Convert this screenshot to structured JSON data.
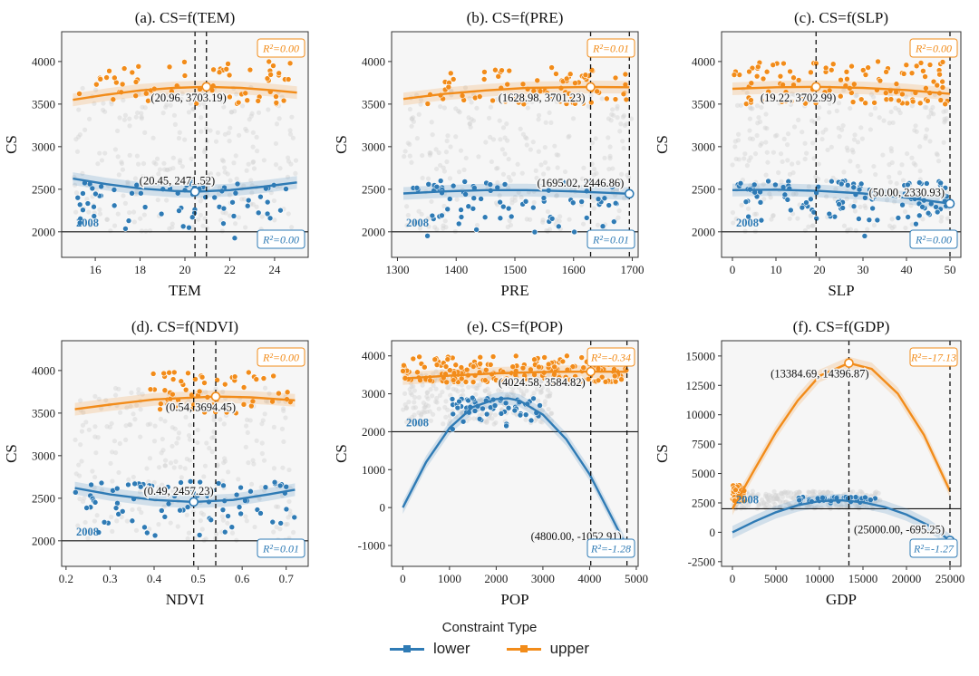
{
  "colors": {
    "lower": "#2f7bb5",
    "upper": "#f28c1a",
    "scatter": "#d3d3d3",
    "panel_bg": "#f6f6f6"
  },
  "legend": {
    "title": "Constraint Type",
    "items": [
      {
        "key": "lower",
        "label": "lower"
      },
      {
        "key": "upper",
        "label": "upper"
      }
    ]
  },
  "chart_data": [
    {
      "type": "scatter",
      "title": "(a). CS=f(TEM)",
      "xlabel": "TEM",
      "ylabel": "CS",
      "xlim": [
        14.5,
        25.5
      ],
      "ylim": [
        1700,
        4350
      ],
      "xticks": [
        16,
        18,
        20,
        22,
        24
      ],
      "yticks": [
        2000,
        2500,
        3000,
        3500,
        4000
      ],
      "year_label": "2008",
      "baseline": 2000,
      "vlines": [
        20.45,
        20.96
      ],
      "upper": {
        "r2": "R²=0.00",
        "curve_x": [
          15,
          16.5,
          18,
          19.5,
          20.96,
          22.5,
          24,
          25
        ],
        "curve_y": [
          3550,
          3610,
          3660,
          3690,
          3703,
          3690,
          3660,
          3635
        ],
        "optimum": [
          20.96,
          3703.19
        ],
        "opt_label": "(20.96, 3703.19)"
      },
      "lower": {
        "r2": "R²=0.00",
        "curve_x": [
          15,
          16.5,
          18,
          19.5,
          20.45,
          22,
          23.5,
          25
        ],
        "curve_y": [
          2625,
          2560,
          2510,
          2480,
          2472,
          2490,
          2530,
          2580
        ],
        "optimum": [
          20.45,
          2471.52
        ],
        "opt_label": "(20.45, 2471.52)"
      },
      "upper_points": {
        "x_range": [
          15.2,
          24.8
        ],
        "y_range": [
          3500,
          4000
        ],
        "count": 70
      },
      "lower_points": {
        "x_range": [
          15.2,
          24.8
        ],
        "y_range": [
          1900,
          2600
        ],
        "count": 70
      },
      "bg_points": {
        "x_range": [
          15,
          25
        ],
        "y_range": [
          2000,
          3700
        ],
        "count": 260
      }
    },
    {
      "type": "scatter",
      "title": "(b). CS=f(PRE)",
      "xlabel": "PRE",
      "ylabel": "CS",
      "xlim": [
        1290,
        1710
      ],
      "ylim": [
        1700,
        4350
      ],
      "xticks": [
        1300,
        1400,
        1500,
        1600,
        1700
      ],
      "yticks": [
        2000,
        2500,
        3000,
        3500,
        4000
      ],
      "year_label": "2008",
      "baseline": 2000,
      "vlines": [
        1628.98,
        1695.02
      ],
      "upper": {
        "r2": "R²=0.01",
        "curve_x": [
          1310,
          1380,
          1450,
          1520,
          1628.98,
          1695
        ],
        "curve_y": [
          3560,
          3620,
          3660,
          3690,
          3701,
          3698
        ],
        "optimum": [
          1628.98,
          3701.23
        ],
        "opt_label": "(1628.98, 3701.23)"
      },
      "lower": {
        "r2": "R²=0.01",
        "curve_x": [
          1310,
          1380,
          1450,
          1520,
          1600,
          1695.02
        ],
        "curve_y": [
          2450,
          2475,
          2490,
          2490,
          2475,
          2447
        ],
        "optimum": [
          1695.02,
          2446.86
        ],
        "opt_label": "(1695.02, 2446.86)"
      },
      "upper_points": {
        "x_range": [
          1350,
          1690
        ],
        "y_range": [
          3500,
          3950
        ],
        "count": 80
      },
      "lower_points": {
        "x_range": [
          1310,
          1690
        ],
        "y_range": [
          1900,
          2600
        ],
        "count": 80
      },
      "bg_points": {
        "x_range": [
          1310,
          1700
        ],
        "y_range": [
          2000,
          3700
        ],
        "count": 260
      }
    },
    {
      "type": "scatter",
      "title": "(c). CS=f(SLP)",
      "xlabel": "SLP",
      "ylabel": "CS",
      "xlim": [
        -2.5,
        52.5
      ],
      "ylim": [
        1700,
        4350
      ],
      "xticks": [
        0,
        10,
        20,
        30,
        40,
        50
      ],
      "yticks": [
        2000,
        2500,
        3000,
        3500,
        4000
      ],
      "year_label": "2008",
      "baseline": 2000,
      "vlines": [
        19.22,
        50.0
      ],
      "upper": {
        "r2": "R²=0.00",
        "curve_x": [
          0,
          10,
          19.22,
          30,
          40,
          50
        ],
        "curve_y": [
          3680,
          3698,
          3703,
          3690,
          3665,
          3620
        ],
        "optimum": [
          19.22,
          3702.99
        ],
        "opt_label": "(19.22, 3702.99)"
      },
      "lower": {
        "r2": "R²=0.00",
        "curve_x": [
          0,
          10,
          20,
          30,
          40,
          50
        ],
        "curve_y": [
          2490,
          2495,
          2480,
          2450,
          2400,
          2331
        ],
        "optimum": [
          50.0,
          2330.93
        ],
        "opt_label": "(50.00, 2330.93)"
      },
      "upper_points": {
        "x_range": [
          0,
          50
        ],
        "y_range": [
          3500,
          4000
        ],
        "count": 110
      },
      "lower_points": {
        "x_range": [
          0,
          50
        ],
        "y_range": [
          1900,
          2600
        ],
        "count": 110
      },
      "bg_points": {
        "x_range": [
          0,
          50
        ],
        "y_range": [
          2000,
          3700
        ],
        "count": 260
      }
    },
    {
      "type": "scatter",
      "title": "(d). CS=f(NDVI)",
      "xlabel": "NDVI",
      "ylabel": "CS",
      "xlim": [
        0.19,
        0.75
      ],
      "ylim": [
        1700,
        4350
      ],
      "xticks": [
        0.2,
        0.3,
        0.4,
        0.5,
        0.6,
        0.7
      ],
      "yticks": [
        2000,
        2500,
        3000,
        3500,
        4000
      ],
      "year_label": "2008",
      "baseline": 2000,
      "vlines": [
        0.49,
        0.54
      ],
      "upper": {
        "r2": "R²=0.00",
        "curve_x": [
          0.22,
          0.3,
          0.4,
          0.54,
          0.62,
          0.72
        ],
        "curve_y": [
          3545,
          3600,
          3660,
          3694,
          3685,
          3650
        ],
        "optimum": [
          0.54,
          3694.45
        ],
        "opt_label": "(0.54, 3694.45)"
      },
      "lower": {
        "r2": "R²=0.01",
        "curve_x": [
          0.22,
          0.3,
          0.4,
          0.49,
          0.58,
          0.66,
          0.72
        ],
        "curve_y": [
          2620,
          2545,
          2480,
          2457,
          2480,
          2545,
          2600
        ],
        "optimum": [
          0.49,
          2457.23
        ],
        "opt_label": "(0.49, 2457.23)"
      },
      "upper_points": {
        "x_range": [
          0.38,
          0.72
        ],
        "y_range": [
          3500,
          4000
        ],
        "count": 60
      },
      "lower_points": {
        "x_range": [
          0.22,
          0.72
        ],
        "y_range": [
          1900,
          2700
        ],
        "count": 80
      },
      "bg_points": {
        "x_range": [
          0.22,
          0.72
        ],
        "y_range": [
          2000,
          3800
        ],
        "count": 260
      }
    },
    {
      "type": "scatter",
      "title": "(e). CS=f(POP)",
      "xlabel": "POP",
      "ylabel": "CS",
      "xlim": [
        -240,
        5040
      ],
      "ylim": [
        -1550,
        4400
      ],
      "xticks": [
        0,
        1000,
        2000,
        3000,
        4000,
        5000
      ],
      "yticks": [
        -1000,
        0,
        1000,
        2000,
        3000,
        4000
      ],
      "year_label": "2008",
      "baseline": 2000,
      "vlines": [
        4024.58,
        4800.0
      ],
      "upper": {
        "r2": "R²=-0.34",
        "curve_x": [
          0,
          1000,
          2000,
          3000,
          4024.58,
          4800
        ],
        "curve_y": [
          3400,
          3480,
          3540,
          3575,
          3585,
          3580
        ],
        "optimum": [
          4024.58,
          3584.82
        ],
        "opt_label": "(4024.58, 3584.82)"
      },
      "lower": {
        "r2": "R²=-1.28",
        "curve_x": [
          0,
          500,
          1000,
          1500,
          2000,
          2250,
          2500,
          3000,
          3500,
          4000,
          4500,
          4800
        ],
        "curve_y": [
          0,
          1200,
          2100,
          2650,
          2860,
          2880,
          2820,
          2450,
          1800,
          880,
          -320,
          -1053
        ],
        "optimum": [
          4800.0,
          -1052.91
        ],
        "opt_label": "(4800.00, -1052.91)"
      },
      "upper_points": {
        "x_range": [
          0,
          4800
        ],
        "y_range": [
          3300,
          4000
        ],
        "count": 200
      },
      "lower_points": {
        "x_range": [
          1000,
          3000
        ],
        "y_range": [
          2000,
          2900
        ],
        "count": 60
      },
      "bg_points": {
        "x_range": [
          0,
          3200
        ],
        "y_range": [
          2200,
          3600
        ],
        "count": 260
      }
    },
    {
      "type": "scatter",
      "title": "(f). CS=f(GDP)",
      "xlabel": "GDP",
      "ylabel": "CS",
      "xlim": [
        -1250,
        26250
      ],
      "ylim": [
        -2900,
        16300
      ],
      "xticks": [
        0,
        5000,
        10000,
        15000,
        20000,
        25000
      ],
      "yticks": [
        -2500,
        0,
        2500,
        5000,
        7500,
        10000,
        12500,
        15000
      ],
      "year_label": "2008",
      "baseline": 2000,
      "vlines": [
        13384.69,
        25000.0
      ],
      "upper": {
        "r2": "R²=-17.13",
        "curve_x": [
          0,
          2500,
          5000,
          7500,
          10000,
          13384.69,
          16000,
          19000,
          22000,
          25000
        ],
        "curve_y": [
          2000,
          5300,
          8500,
          11200,
          13300,
          14397,
          13900,
          11800,
          8300,
          3500
        ],
        "optimum": [
          13384.69,
          14396.87
        ],
        "opt_label": "(13384.69, 14396.87)"
      },
      "lower": {
        "r2": "R²=-1.27",
        "curve_x": [
          0,
          2500,
          5000,
          7500,
          10000,
          12500,
          15000,
          17500,
          20000,
          22500,
          25000
        ],
        "curve_y": [
          0,
          900,
          1700,
          2300,
          2650,
          2720,
          2550,
          2150,
          1500,
          600,
          -695
        ],
        "optimum": [
          25000.0,
          -695.25
        ],
        "opt_label": "(25000.00, -695.25)"
      },
      "upper_points": {
        "x_range": [
          0,
          1500
        ],
        "y_range": [
          2600,
          4000
        ],
        "count": 50
      },
      "lower_points": {
        "x_range": [
          7500,
          16500
        ],
        "y_range": [
          2300,
          3000
        ],
        "count": 50
      },
      "bg_points": {
        "x_range": [
          0,
          17000
        ],
        "y_range": [
          2000,
          3500
        ],
        "count": 260
      }
    }
  ]
}
